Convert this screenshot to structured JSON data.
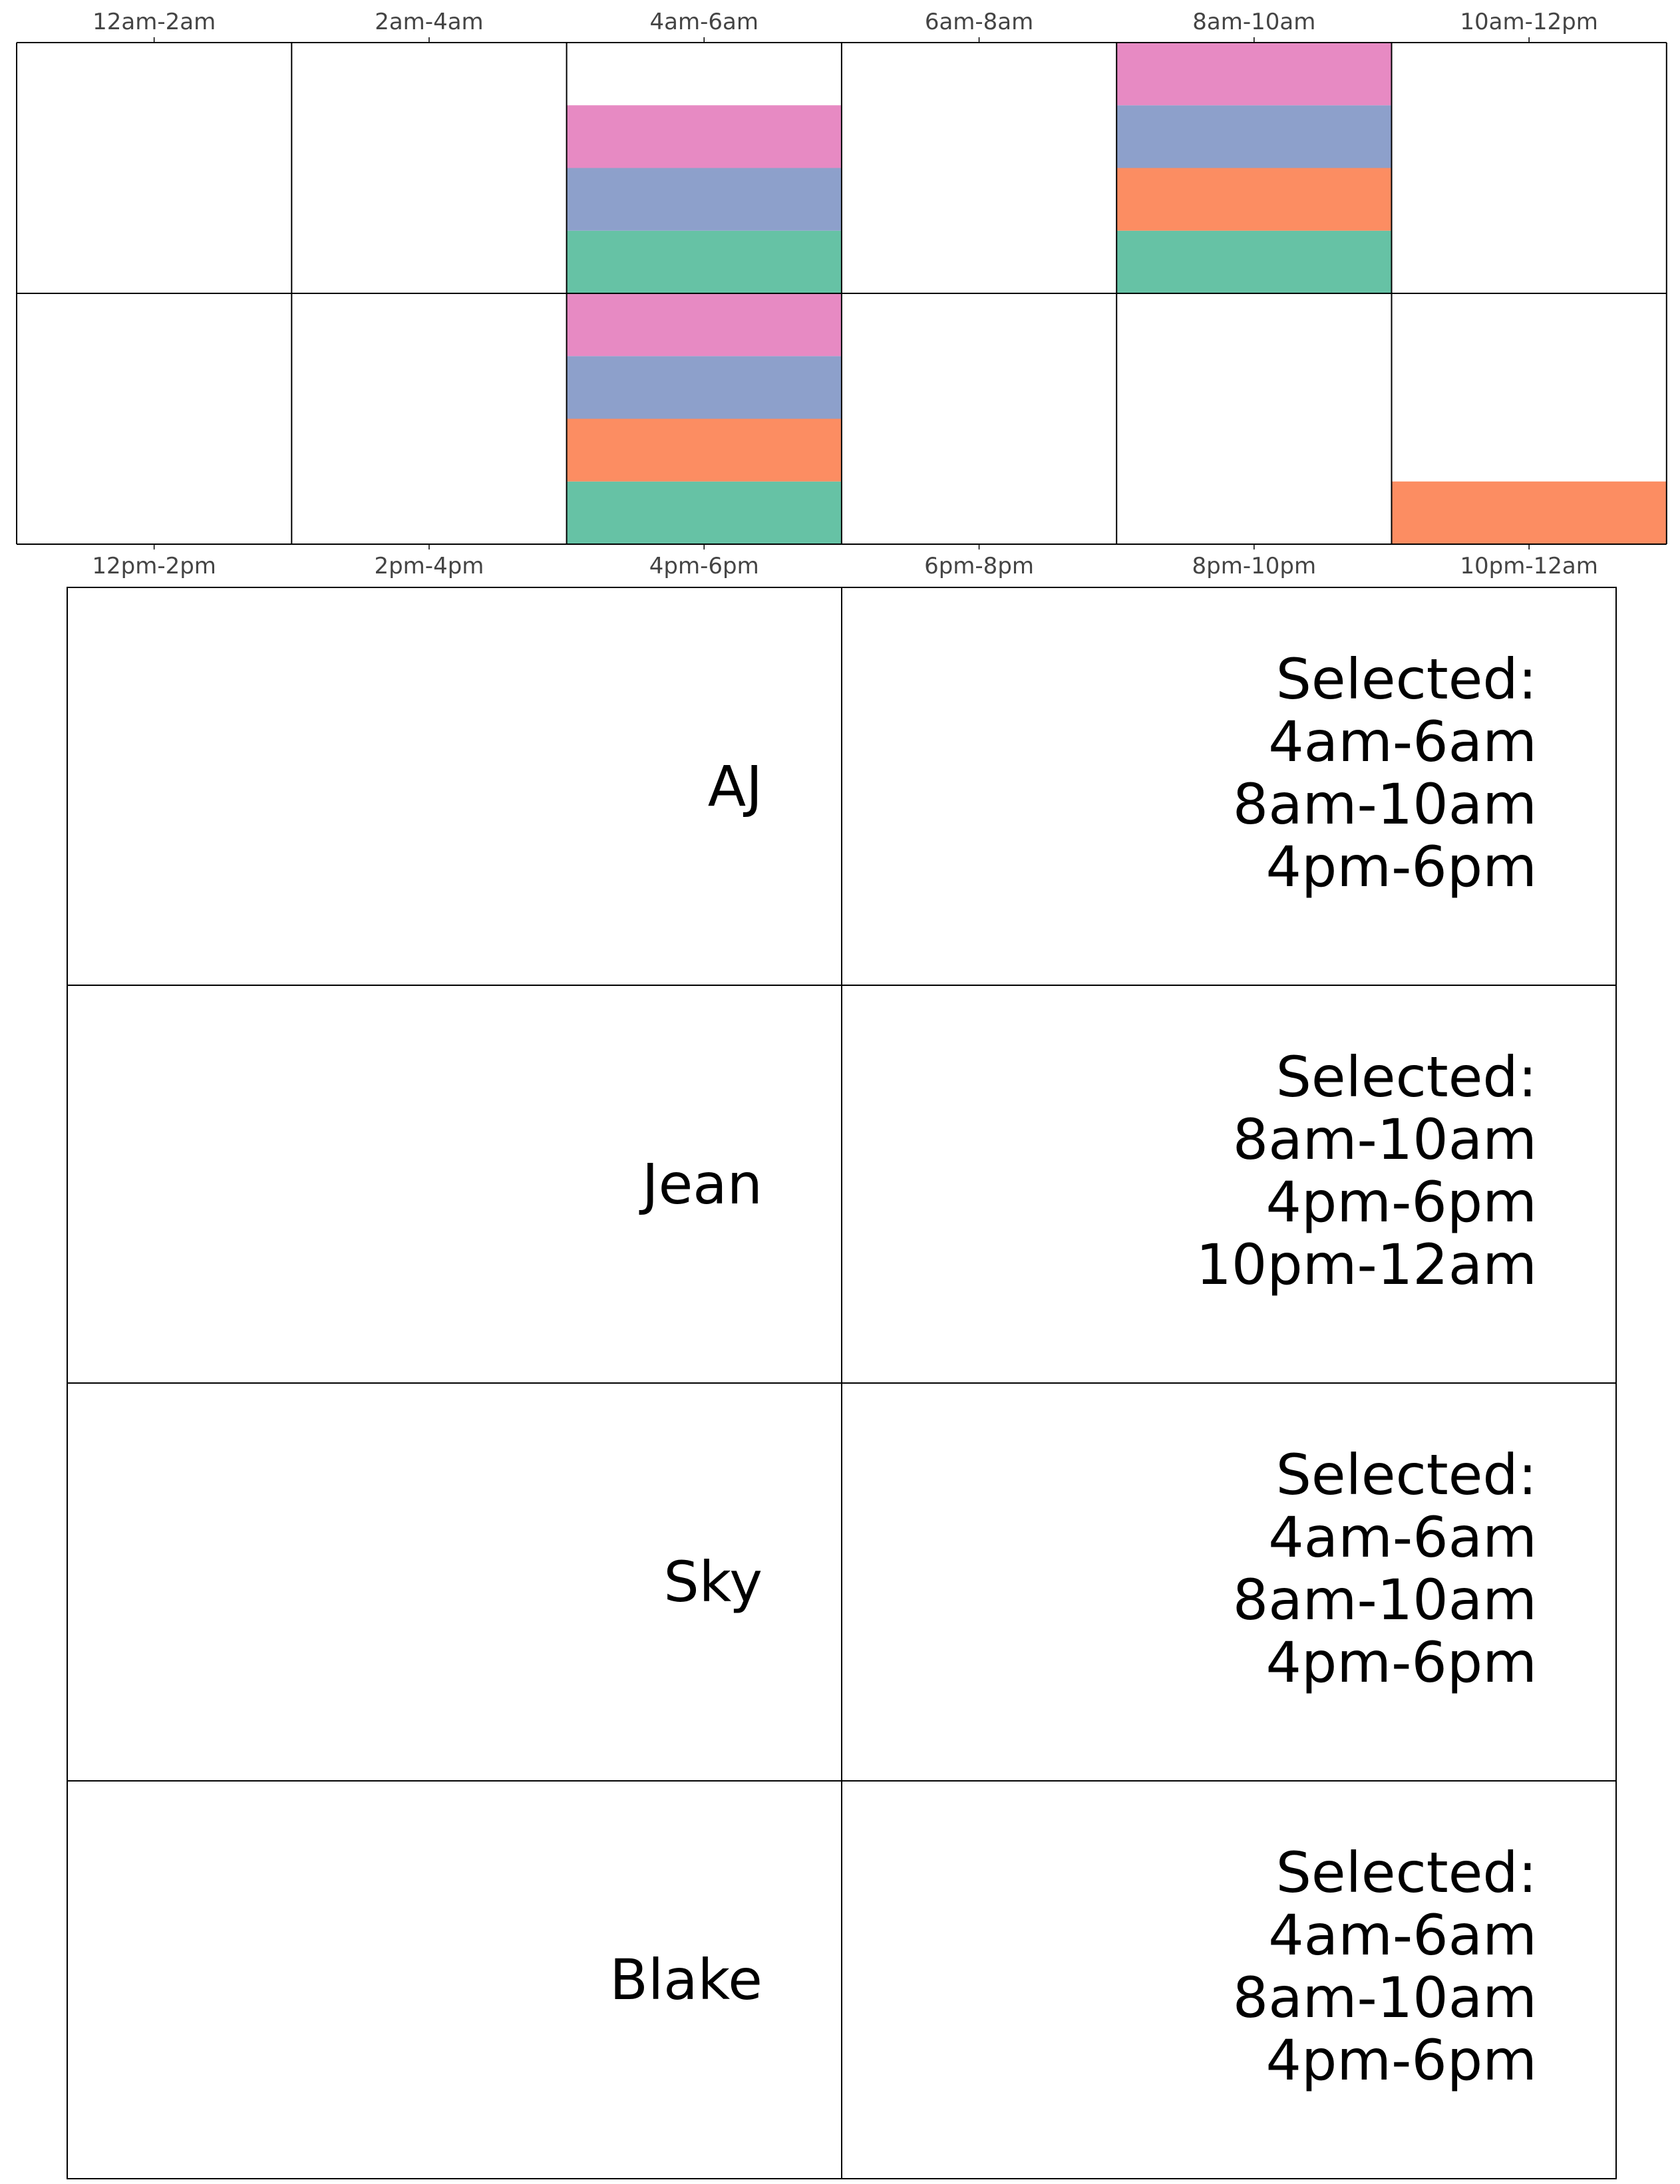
{
  "slot_grid": {
    "top_labels": [
      "12am-2am",
      "2am-4am",
      "4am-6am",
      "6am-8am",
      "8am-10am",
      "10am-12pm"
    ],
    "bottom_labels": [
      "12pm-2pm",
      "2pm-4pm",
      "4pm-6pm",
      "6pm-8pm",
      "8pm-10pm",
      "10pm-12am"
    ],
    "max_people": 4,
    "colors": {
      "AJ": "#66c2a5",
      "Jean": "#fc8d62",
      "Sky": "#8da0cb",
      "Blake": "#e78ac3"
    },
    "stack_order": [
      "AJ",
      "Jean",
      "Sky",
      "Blake"
    ],
    "slots": [
      {
        "row": 0,
        "col": 2,
        "people": [
          "AJ",
          "Sky",
          "Blake"
        ]
      },
      {
        "row": 0,
        "col": 4,
        "people": [
          "AJ",
          "Jean",
          "Sky",
          "Blake"
        ]
      },
      {
        "row": 1,
        "col": 2,
        "people": [
          "AJ",
          "Jean",
          "Sky",
          "Blake"
        ]
      },
      {
        "row": 1,
        "col": 5,
        "people": [
          "Jean"
        ]
      }
    ]
  },
  "people": [
    {
      "name": "AJ",
      "selected_label": "Selected:",
      "selected": [
        "4am-6am",
        "8am-10am",
        "4pm-6pm"
      ]
    },
    {
      "name": "Jean",
      "selected_label": "Selected:",
      "selected": [
        "8am-10am",
        "4pm-6pm",
        "10pm-12am"
      ]
    },
    {
      "name": "Sky",
      "selected_label": "Selected:",
      "selected": [
        "4am-6am",
        "8am-10am",
        "4pm-6pm"
      ]
    },
    {
      "name": "Blake",
      "selected_label": "Selected:",
      "selected": [
        "4am-6am",
        "8am-10am",
        "4pm-6pm"
      ]
    }
  ]
}
